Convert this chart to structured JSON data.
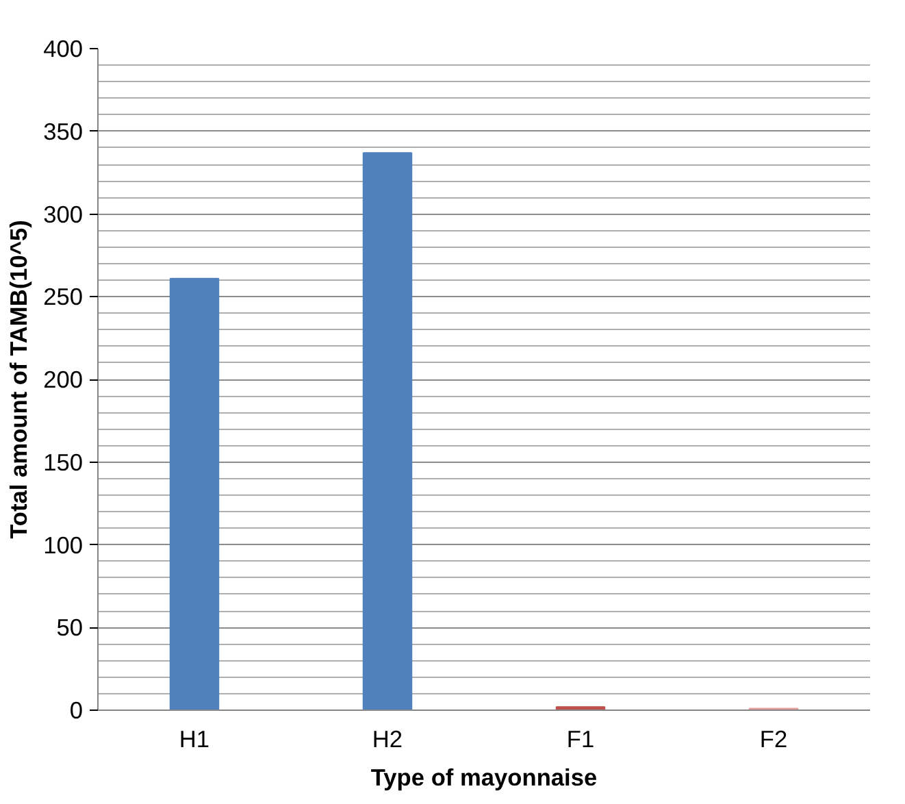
{
  "chart_data": {
    "type": "bar",
    "xlabel": "Type of mayonnaise",
    "ylabel": "Total amount of TAMB(10^5)",
    "categories": [
      "H1",
      "H2",
      "F1",
      "F2"
    ],
    "values": [
      261,
      337,
      2,
      1
    ],
    "colors": [
      "#4f81bd",
      "#4f81bd",
      "#c0504d",
      "#e6a0a0"
    ],
    "ylim": [
      0,
      400
    ],
    "yticks": [
      0,
      50,
      100,
      150,
      200,
      250,
      300,
      350,
      400
    ],
    "grid": "y"
  }
}
